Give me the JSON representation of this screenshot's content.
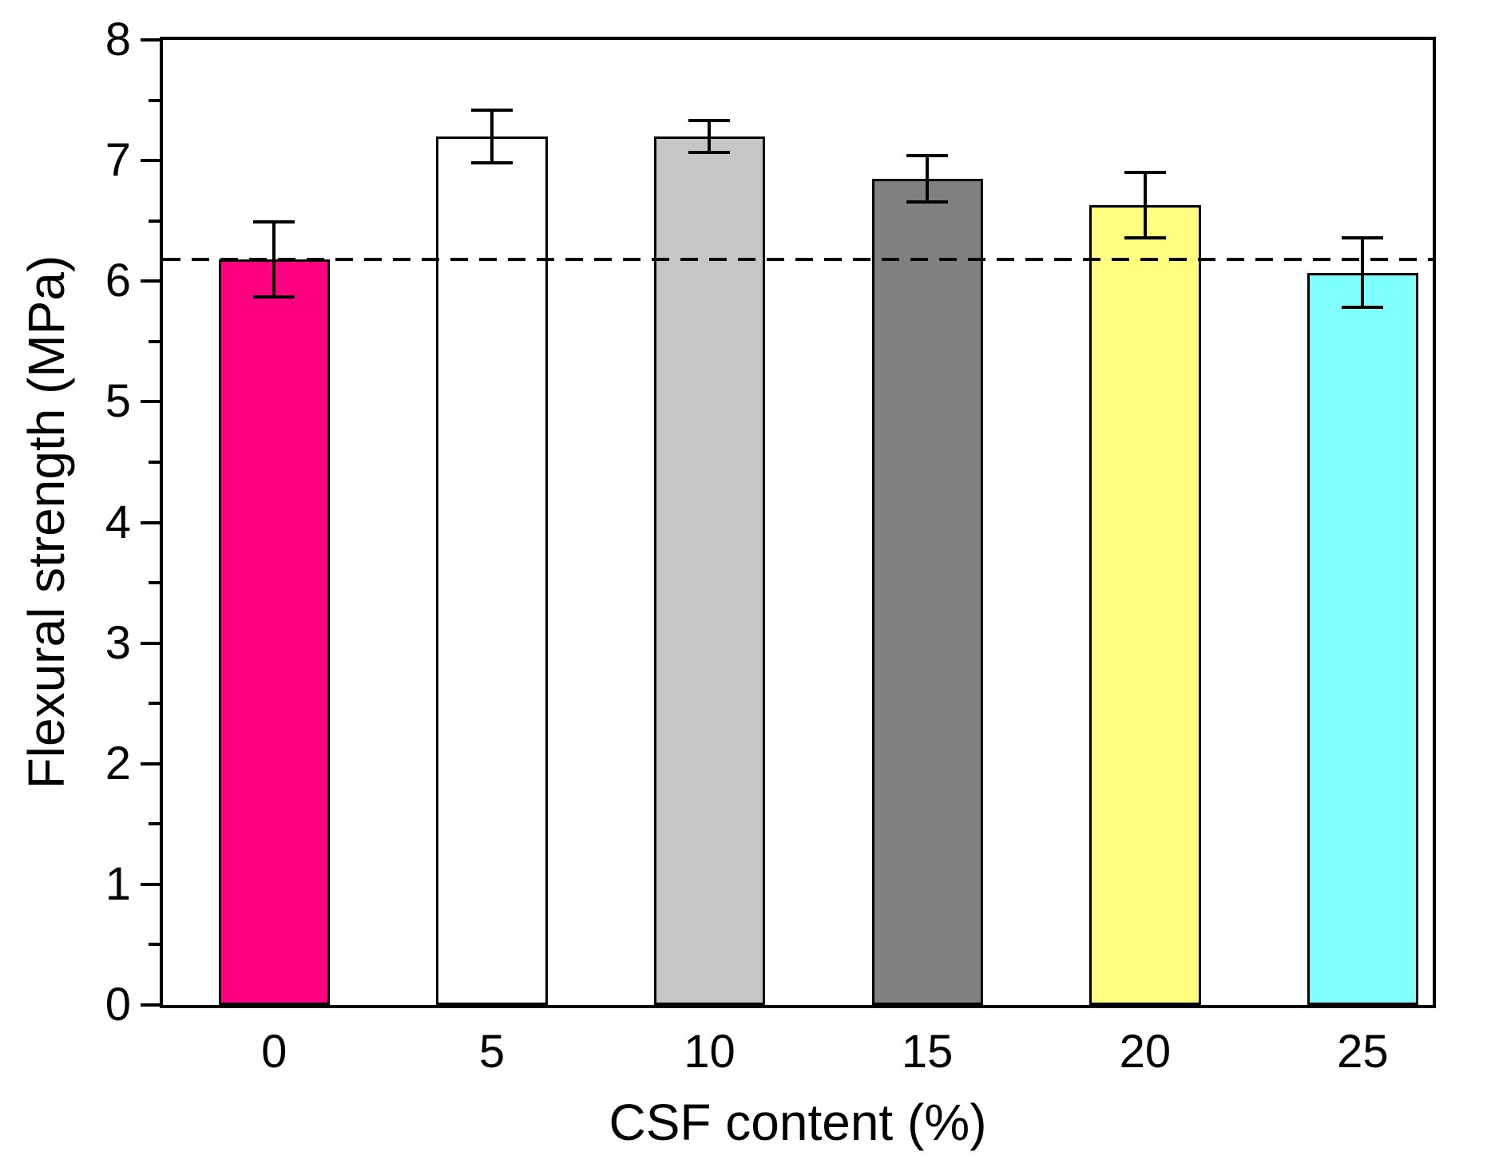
{
  "figure": {
    "description": "Bar chart of flexural strength versus CSF content with error bars and a dashed reference line at the 0% control level"
  },
  "chart_data": {
    "type": "bar",
    "title": "",
    "xlabel": "CSF content (%)",
    "ylabel": "Flexural strength (MPa)",
    "categories": [
      "0",
      "5",
      "10",
      "15",
      "20",
      "25"
    ],
    "series": [
      {
        "name": "Flexural strength",
        "values": [
          6.18,
          7.2,
          7.2,
          6.85,
          6.63,
          6.07
        ],
        "errors": [
          0.31,
          0.22,
          0.13,
          0.19,
          0.27,
          0.29
        ]
      }
    ],
    "bar_colors": [
      "#FF0080",
      "#FFFFFF",
      "#C6C6C6",
      "#808080",
      "#FFFF80",
      "#80FFFF"
    ],
    "bar_border_color": "#000000",
    "ylim": [
      0,
      8
    ],
    "y_major_ticks": [
      0,
      1,
      2,
      3,
      4,
      5,
      6,
      7,
      8
    ],
    "y_minor_step": 0.5,
    "reference_line": {
      "value": 6.18,
      "style": "dashed",
      "color": "#000000"
    },
    "grid": false,
    "legend": false,
    "frame": true,
    "error_bar_color": "#000000"
  }
}
